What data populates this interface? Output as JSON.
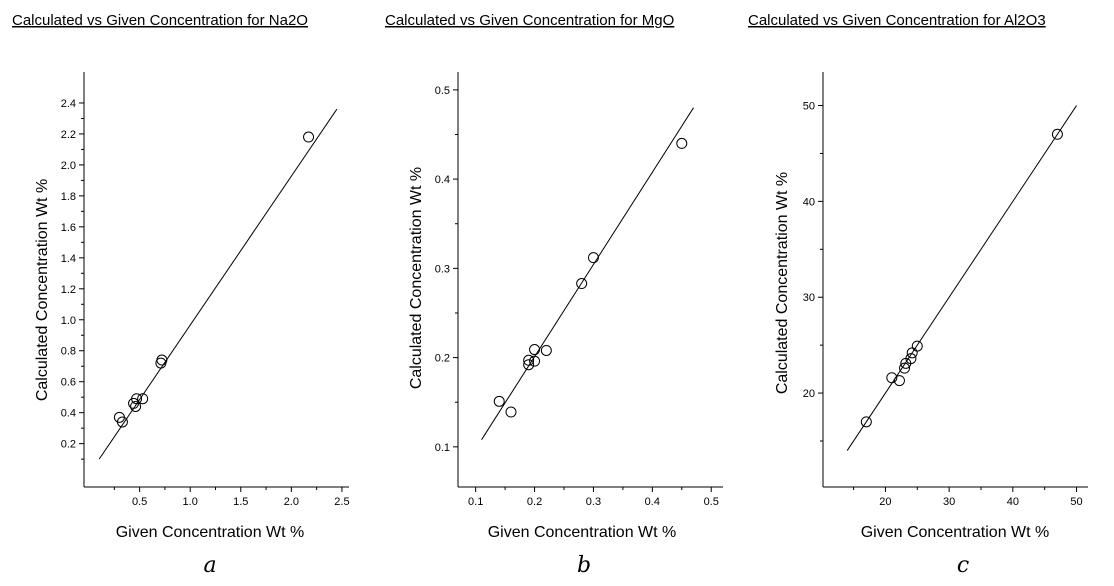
{
  "chart_data": [
    {
      "type": "scatter",
      "panel_label": "a",
      "title": "Calculated vs Given Concentration for Na2O",
      "xlabel": "Given Concentration  Wt %",
      "ylabel": "Calculated Concentration  Wt %",
      "xticks": [
        0.5,
        1.0,
        1.5,
        2.0,
        2.5
      ],
      "xtick_labels": [
        "0.5",
        "1.0",
        "1.5",
        "2.0",
        "2.5"
      ],
      "yticks": [
        0.2,
        0.4,
        0.6,
        0.8,
        1.0,
        1.2,
        1.4,
        1.6,
        1.8,
        2.0,
        2.2,
        2.4
      ],
      "ytick_labels": [
        "0.2",
        "0.4",
        "0.6",
        "0.8",
        "1.0",
        "1.2",
        "1.4",
        "1.6",
        "1.8",
        "2.0",
        "2.2",
        "2.4"
      ],
      "xlim": [
        -0.05,
        2.57
      ],
      "ylim": [
        -0.08,
        2.6
      ],
      "points": [
        {
          "x": 0.3,
          "y": 0.37
        },
        {
          "x": 0.33,
          "y": 0.34
        },
        {
          "x": 0.44,
          "y": 0.46
        },
        {
          "x": 0.46,
          "y": 0.44
        },
        {
          "x": 0.47,
          "y": 0.49
        },
        {
          "x": 0.53,
          "y": 0.49
        },
        {
          "x": 0.71,
          "y": 0.72
        },
        {
          "x": 0.72,
          "y": 0.74
        },
        {
          "x": 2.17,
          "y": 2.18
        }
      ],
      "fit_line": {
        "x": [
          0.1,
          2.45
        ],
        "y": [
          0.1,
          2.36
        ]
      }
    },
    {
      "type": "scatter",
      "panel_label": "b",
      "title": "Calculated vs Given Concentration for MgO",
      "xlabel": "Given Concentration  Wt %",
      "ylabel": "Calculated Concentration  Wt %",
      "xticks": [
        0.1,
        0.2,
        0.3,
        0.4,
        0.5
      ],
      "xtick_labels": [
        "0.1",
        "0.2",
        "0.3",
        "0.4",
        "0.5"
      ],
      "yticks": [
        0.1,
        0.2,
        0.3,
        0.4,
        0.5
      ],
      "ytick_labels": [
        "0.1",
        "0.2",
        "0.3",
        "0.4",
        "0.5"
      ],
      "xlim": [
        0.07,
        0.52
      ],
      "ylim": [
        0.055,
        0.52
      ],
      "points": [
        {
          "x": 0.14,
          "y": 0.151
        },
        {
          "x": 0.16,
          "y": 0.139
        },
        {
          "x": 0.19,
          "y": 0.192
        },
        {
          "x": 0.19,
          "y": 0.197
        },
        {
          "x": 0.2,
          "y": 0.196
        },
        {
          "x": 0.2,
          "y": 0.209
        },
        {
          "x": 0.22,
          "y": 0.208
        },
        {
          "x": 0.28,
          "y": 0.283
        },
        {
          "x": 0.3,
          "y": 0.312
        },
        {
          "x": 0.45,
          "y": 0.44
        }
      ],
      "fit_line": {
        "x": [
          0.11,
          0.47
        ],
        "y": [
          0.108,
          0.48
        ]
      }
    },
    {
      "type": "scatter",
      "panel_label": "c",
      "title": "Calculated vs Given Concentration for Al2O3",
      "xlabel": "Given Concentration  Wt %",
      "ylabel": "Calculated Concentration  Wt %",
      "xticks": [
        20,
        30,
        40,
        50
      ],
      "xtick_labels": [
        "20",
        "30",
        "40",
        "50"
      ],
      "yticks": [
        20,
        30,
        40,
        50
      ],
      "ytick_labels": [
        "20",
        "30",
        "40",
        "50"
      ],
      "xlim": [
        10.2,
        51.8
      ],
      "ylim": [
        10.2,
        53.5
      ],
      "points": [
        {
          "x": 17,
          "y": 17
        },
        {
          "x": 21,
          "y": 21.6
        },
        {
          "x": 22.2,
          "y": 21.3
        },
        {
          "x": 23,
          "y": 22.6
        },
        {
          "x": 23.2,
          "y": 23.1
        },
        {
          "x": 24,
          "y": 23.6
        },
        {
          "x": 24.2,
          "y": 24.2
        },
        {
          "x": 25,
          "y": 24.9
        },
        {
          "x": 47,
          "y": 47
        }
      ],
      "fit_line": {
        "x": [
          14,
          50
        ],
        "y": [
          14,
          50
        ]
      }
    }
  ]
}
